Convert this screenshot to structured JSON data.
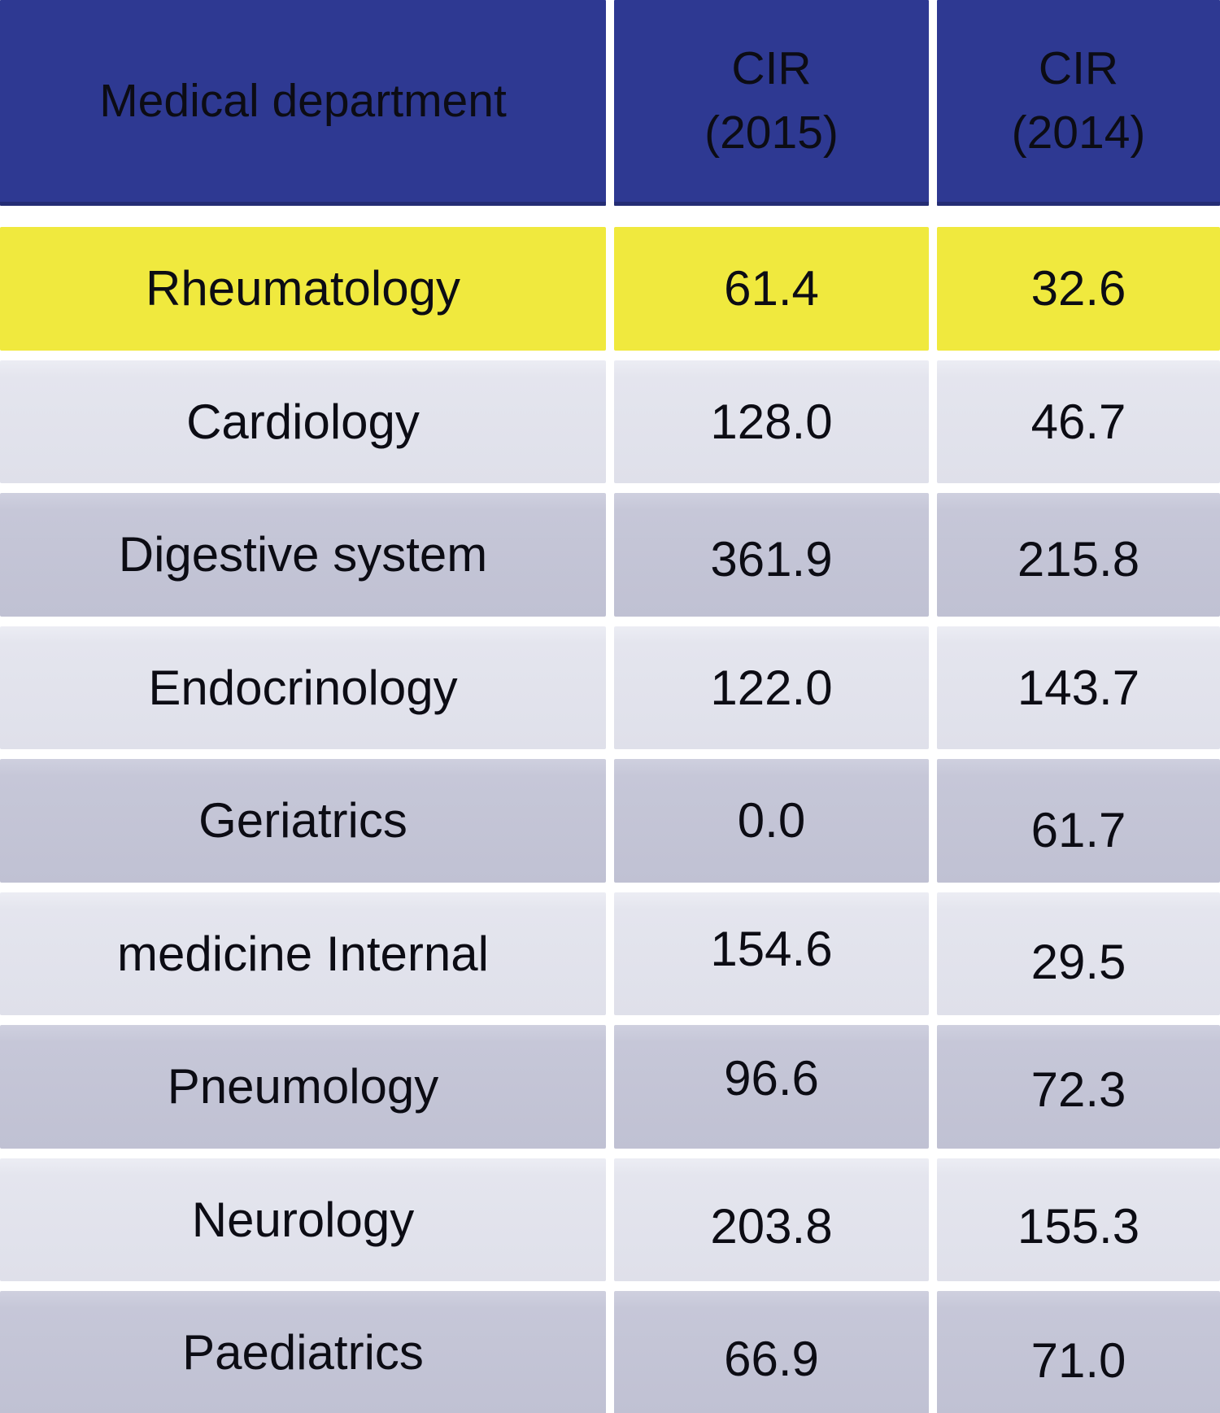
{
  "chart_data": {
    "type": "table",
    "columns": [
      "Medical department",
      "CIR (2015)",
      "CIR (2014)"
    ],
    "rows": [
      [
        "Rheumatology",
        61.4,
        32.6
      ],
      [
        "Cardiology",
        128.0,
        46.7
      ],
      [
        "Digestive system",
        361.9,
        215.8
      ],
      [
        "Endocrinology",
        122.0,
        143.7
      ],
      [
        "Geriatrics",
        0.0,
        61.7
      ],
      [
        "medicine Internal",
        154.6,
        29.5
      ],
      [
        "Pneumology",
        96.6,
        72.3
      ],
      [
        "Neurology",
        203.8,
        155.3
      ],
      [
        "Paediatrics",
        66.9,
        71.0
      ]
    ],
    "highlighted_row": "Rheumatology",
    "layout_hints": "header row dark blue, highlighted first data row yellow, remaining rows alternate light/dark lavender, white gutters between all cells"
  },
  "table": {
    "header": {
      "department": "Medical department",
      "cir_label": "CIR",
      "year_2015": "(2015)",
      "year_2014": "(2014)"
    },
    "rows": [
      {
        "department": "Rheumatology",
        "cir2015": "61.4",
        "cir2014": "32.6"
      },
      {
        "department": "Cardiology",
        "cir2015": "128.0",
        "cir2014": "46.7"
      },
      {
        "department": "Digestive system",
        "cir2015": "361.9",
        "cir2014": "215.8"
      },
      {
        "department": "Endocrinology",
        "cir2015": "122.0",
        "cir2014": "143.7"
      },
      {
        "department": "Geriatrics",
        "cir2015": "0.0",
        "cir2014": "61.7"
      },
      {
        "department": "medicine Internal",
        "cir2015": "154.6",
        "cir2014": "29.5"
      },
      {
        "department": "Pneumology",
        "cir2015": "96.6",
        "cir2014": "72.3"
      },
      {
        "department": "Neurology",
        "cir2015": "203.8",
        "cir2014": "155.3"
      },
      {
        "department": "Paediatrics",
        "cir2015": "66.9",
        "cir2014": "71.0"
      }
    ]
  },
  "colors": {
    "header_bg": "#2e3992",
    "header_edge": "#242d74",
    "highlight_row": "#f0e93e",
    "row_light": "#e4e5ee",
    "row_dark": "#c6c7d8",
    "text": "#0c0c14"
  }
}
